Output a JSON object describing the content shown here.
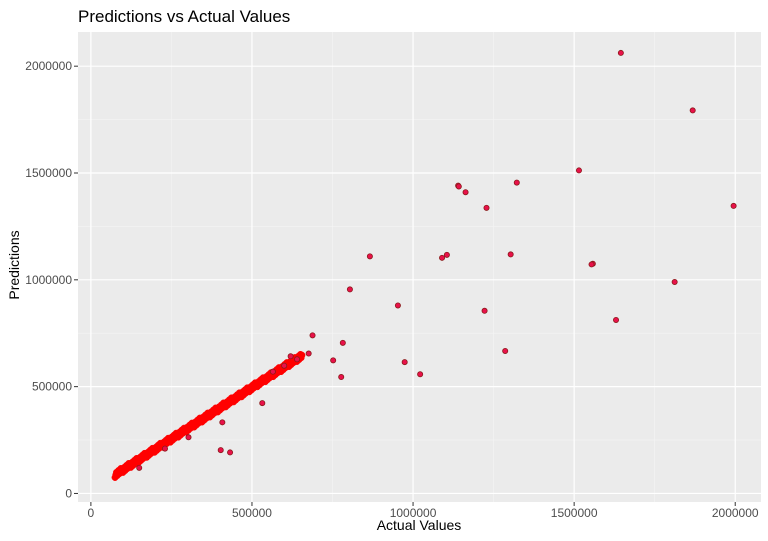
{
  "chart_data": {
    "type": "scatter",
    "title": "Predictions vs Actual Values",
    "xlabel": "Actual Values",
    "ylabel": "Predictions",
    "xlim": [
      -40000,
      2080000
    ],
    "ylim": [
      -40000,
      2160000
    ],
    "xticks": [
      0,
      500000,
      1000000,
      1500000,
      2000000
    ],
    "yticks": [
      0,
      500000,
      1000000,
      1500000,
      2000000
    ],
    "xtick_labels": [
      "0",
      "500000",
      "1000000",
      "1500000",
      "2000000"
    ],
    "ytick_labels": [
      "0",
      "500000",
      "1000000",
      "1500000",
      "2000000"
    ],
    "grid": true,
    "background": "#ebebeb",
    "point_fill": "#e8114a",
    "point_stroke": "#8b1a1a",
    "dense_band": {
      "description_free": true,
      "x_start": 75000,
      "x_end": 655000,
      "slope": 0.962,
      "intercept": 15000,
      "fill": "#ff0000"
    },
    "points": [
      {
        "x": 1645000,
        "y": 2062000
      },
      {
        "x": 1868000,
        "y": 1793000
      },
      {
        "x": 1515000,
        "y": 1512000
      },
      {
        "x": 1995000,
        "y": 1346000
      },
      {
        "x": 1140000,
        "y": 1441000
      },
      {
        "x": 1142000,
        "y": 1437000
      },
      {
        "x": 1163000,
        "y": 1410000
      },
      {
        "x": 1322000,
        "y": 1455000
      },
      {
        "x": 1228000,
        "y": 1337000
      },
      {
        "x": 1303000,
        "y": 1119000
      },
      {
        "x": 1105000,
        "y": 1117000
      },
      {
        "x": 1090000,
        "y": 1103000
      },
      {
        "x": 866000,
        "y": 1110000
      },
      {
        "x": 1558000,
        "y": 1075000
      },
      {
        "x": 1554000,
        "y": 1072000
      },
      {
        "x": 1812000,
        "y": 990000
      },
      {
        "x": 804000,
        "y": 955000
      },
      {
        "x": 953000,
        "y": 880000
      },
      {
        "x": 1222000,
        "y": 855000
      },
      {
        "x": 1630000,
        "y": 812000
      },
      {
        "x": 688000,
        "y": 740000
      },
      {
        "x": 782000,
        "y": 705000
      },
      {
        "x": 1286000,
        "y": 667000
      },
      {
        "x": 676000,
        "y": 655000
      },
      {
        "x": 752000,
        "y": 623000
      },
      {
        "x": 974000,
        "y": 615000
      },
      {
        "x": 1022000,
        "y": 558000
      },
      {
        "x": 777000,
        "y": 545000
      },
      {
        "x": 532000,
        "y": 423000
      },
      {
        "x": 408000,
        "y": 333000
      },
      {
        "x": 303000,
        "y": 263000
      },
      {
        "x": 403000,
        "y": 203000
      },
      {
        "x": 432000,
        "y": 192000
      },
      {
        "x": 620000,
        "y": 642000
      },
      {
        "x": 640000,
        "y": 628000
      },
      {
        "x": 600000,
        "y": 598000
      },
      {
        "x": 565000,
        "y": 570000
      },
      {
        "x": 150000,
        "y": 120000
      },
      {
        "x": 230000,
        "y": 210000
      }
    ]
  }
}
